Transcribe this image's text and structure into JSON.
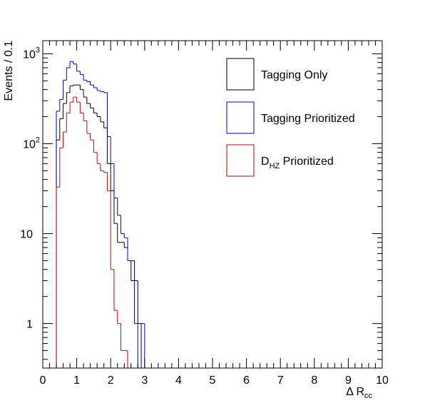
{
  "chart_data": {
    "type": "histogram",
    "title": "",
    "xlabel": "Δ R",
    "xlabel_sub": "cc",
    "ylabel": "Events / 0.1",
    "xlim": [
      0,
      10
    ],
    "ylim": [
      0.32,
      1400
    ],
    "yscale": "log",
    "bin_width": 0.1,
    "bin_start": 0,
    "x_ticks": [
      "0",
      "1",
      "2",
      "3",
      "4",
      "5",
      "6",
      "7",
      "8",
      "9",
      "10"
    ],
    "y_ticks": [
      {
        "value": 1,
        "label": "1",
        "exp": ""
      },
      {
        "value": 10,
        "label": "10",
        "exp": ""
      },
      {
        "value": 100,
        "label": "10",
        "exp": "2"
      },
      {
        "value": 1000,
        "label": "10",
        "exp": "3"
      }
    ],
    "legend_position": "top-right",
    "series": [
      {
        "name": "Tagging Only",
        "sub": "",
        "color": "#000000",
        "values": [
          0,
          0,
          0,
          0,
          110,
          190,
          280,
          370,
          440,
          450,
          450,
          400,
          330,
          280,
          250,
          220,
          200,
          175,
          150,
          60,
          30,
          13,
          8,
          8,
          7,
          5,
          3,
          3,
          1,
          0,
          0,
          0,
          0,
          0,
          0,
          0,
          0,
          0,
          0,
          0,
          0,
          0,
          0,
          0,
          0,
          0,
          0,
          0,
          0,
          0,
          0,
          0,
          0,
          0,
          0,
          0,
          0,
          0,
          0,
          0,
          0,
          0,
          0,
          0,
          0,
          0,
          0,
          0,
          0,
          0,
          0,
          0,
          0,
          0,
          0,
          0,
          0,
          0,
          0,
          0,
          0,
          0,
          0,
          0,
          0,
          0,
          0,
          0,
          0,
          0,
          0,
          0,
          0,
          0,
          0,
          0,
          0,
          0,
          0,
          0
        ]
      },
      {
        "name": "Tagging Prioritized",
        "sub": "",
        "color": "#0000cc",
        "values": [
          0,
          0,
          0,
          0,
          230,
          310,
          510,
          700,
          820,
          770,
          640,
          590,
          510,
          490,
          450,
          420,
          390,
          380,
          370,
          120,
          60,
          25,
          16,
          10,
          9,
          5,
          5,
          1,
          0,
          1,
          0,
          0,
          0,
          0,
          0,
          0,
          0,
          0,
          0,
          0,
          0,
          0,
          0,
          0,
          0,
          0,
          0,
          0,
          0,
          0,
          0,
          0,
          0,
          0,
          0,
          0,
          0,
          0,
          0,
          0,
          0,
          0,
          0,
          0,
          0,
          0,
          0,
          0,
          0,
          0,
          0,
          0,
          0,
          0,
          0,
          0,
          0,
          0,
          0,
          0,
          0,
          0,
          0,
          0,
          0,
          0,
          0,
          0,
          0,
          0,
          0,
          0,
          0,
          0,
          0,
          0,
          0,
          0,
          0,
          0
        ]
      },
      {
        "name": "D",
        "sub": "HZ",
        "name_suffix": " Prioritized",
        "color": "#cc0000",
        "values": [
          0,
          0,
          0,
          0,
          33,
          90,
          135,
          220,
          290,
          330,
          290,
          220,
          180,
          130,
          110,
          80,
          60,
          50,
          48,
          30,
          4,
          1.4,
          1,
          0.5,
          0.5,
          0,
          0,
          0,
          0,
          0,
          0,
          0,
          0,
          0,
          0,
          0,
          0,
          0,
          0,
          0,
          0,
          0,
          0,
          0,
          0,
          0,
          0,
          0,
          0,
          0,
          0,
          0,
          0,
          0,
          0,
          0,
          0,
          0,
          0,
          0,
          0,
          0,
          0,
          0,
          0,
          0,
          0,
          0,
          0,
          0,
          0,
          0,
          0,
          0,
          0,
          0,
          0,
          0,
          0,
          0,
          0,
          0,
          0,
          0,
          0,
          0,
          0,
          0,
          0,
          0,
          0,
          0,
          0,
          0,
          0,
          0,
          0,
          0,
          0,
          0,
          0,
          0,
          0
        ]
      }
    ]
  }
}
